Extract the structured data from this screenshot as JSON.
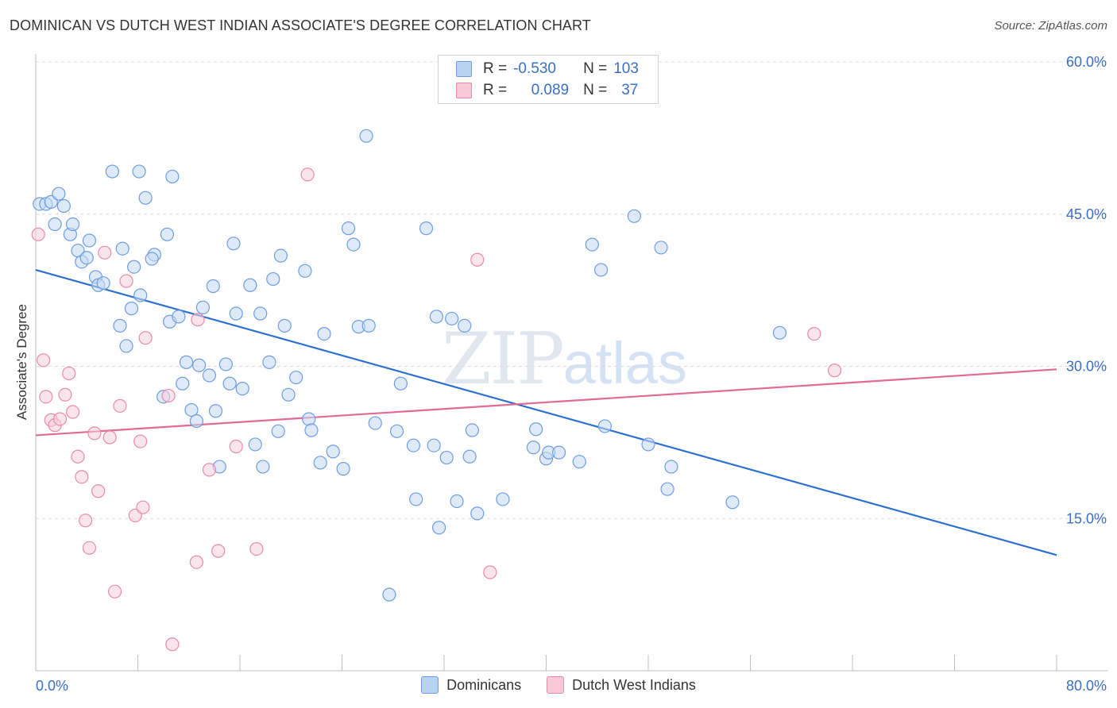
{
  "title": "DOMINICAN VS DUTCH WEST INDIAN ASSOCIATE'S DEGREE CORRELATION CHART",
  "source": "Source: ZipAtlas.com",
  "watermark": {
    "zip": "ZIP",
    "atlas": "atlas"
  },
  "legend": {
    "rows": [
      {
        "r_label": "R =",
        "r_value": "-0.530",
        "n_label": "N =",
        "n_value": "103",
        "color": "#a9c8f0",
        "border": "#6d9de0"
      },
      {
        "r_label": "R =",
        "r_value": "0.089",
        "n_label": "N =",
        "n_value": "37",
        "color": "#f7c0d0",
        "border": "#e98aa8"
      }
    ]
  },
  "bottom_legend": [
    {
      "label": "Dominicans",
      "color": "#b8d3f2",
      "border": "#6d9de0"
    },
    {
      "label": "Dutch West Indians",
      "color": "#f8cad8",
      "border": "#e98aa8"
    }
  ],
  "chart_data": {
    "type": "scatter",
    "title": "DOMINICAN VS DUTCH WEST INDIAN ASSOCIATE'S DEGREE CORRELATION CHART",
    "xlabel": "",
    "ylabel": "Associate's Degree",
    "xlim": [
      0,
      80
    ],
    "ylim": [
      0,
      60
    ],
    "x_ticks": [
      0,
      8,
      16,
      24,
      32,
      40,
      48,
      56,
      64,
      72,
      80
    ],
    "x_tick_labels": {
      "first": "0.0%",
      "last": "80.0%"
    },
    "y_ticks": [
      15,
      30,
      45,
      60
    ],
    "y_tick_labels": [
      "15.0%",
      "30.0%",
      "45.0%",
      "60.0%"
    ],
    "grid": true,
    "legend_position": "top-center",
    "series": [
      {
        "name": "Dominicans",
        "color": "#6d9de0",
        "fill": "#c4d9f4",
        "trend": {
          "x": [
            0,
            80
          ],
          "y": [
            39.5,
            11.4
          ],
          "color": "#2b6fd0"
        },
        "points": [
          [
            0.3,
            46
          ],
          [
            0.8,
            46
          ],
          [
            1.2,
            46.2
          ],
          [
            1.8,
            47
          ],
          [
            2.2,
            45.8
          ],
          [
            1.5,
            44
          ],
          [
            2.7,
            43
          ],
          [
            2.9,
            44
          ],
          [
            3.3,
            41.4
          ],
          [
            4.2,
            42.4
          ],
          [
            3.6,
            40.3
          ],
          [
            4.0,
            40.7
          ],
          [
            4.7,
            38.8
          ],
          [
            4.9,
            38
          ],
          [
            5.3,
            38.2
          ],
          [
            6.0,
            49.2
          ],
          [
            6.6,
            34
          ],
          [
            6.8,
            41.6
          ],
          [
            7.1,
            32
          ],
          [
            7.5,
            35.7
          ],
          [
            7.7,
            39.8
          ],
          [
            8.2,
            37
          ],
          [
            8.1,
            49.2
          ],
          [
            8.6,
            46.6
          ],
          [
            9.3,
            41
          ],
          [
            9.1,
            40.6
          ],
          [
            10.0,
            27
          ],
          [
            10.3,
            43
          ],
          [
            10.5,
            34.4
          ],
          [
            10.7,
            48.7
          ],
          [
            11.2,
            34.9
          ],
          [
            11.5,
            28.3
          ],
          [
            11.8,
            30.4
          ],
          [
            12.2,
            25.7
          ],
          [
            12.6,
            24.6
          ],
          [
            12.8,
            30.1
          ],
          [
            13.1,
            35.8
          ],
          [
            13.6,
            29.1
          ],
          [
            13.9,
            37.9
          ],
          [
            14.1,
            25.6
          ],
          [
            14.4,
            20.1
          ],
          [
            14.9,
            30.2
          ],
          [
            15.2,
            28.3
          ],
          [
            15.5,
            42.1
          ],
          [
            15.7,
            35.2
          ],
          [
            16.2,
            27.8
          ],
          [
            16.8,
            38
          ],
          [
            17.2,
            22.3
          ],
          [
            17.6,
            35.2
          ],
          [
            17.8,
            20.1
          ],
          [
            18.3,
            30.4
          ],
          [
            18.6,
            38.6
          ],
          [
            19.0,
            23.6
          ],
          [
            19.2,
            40.9
          ],
          [
            19.5,
            34
          ],
          [
            19.8,
            27.2
          ],
          [
            20.4,
            28.9
          ],
          [
            21.1,
            39.4
          ],
          [
            21.4,
            24.8
          ],
          [
            21.6,
            23.7
          ],
          [
            22.3,
            20.5
          ],
          [
            22.6,
            33.2
          ],
          [
            23.3,
            21.6
          ],
          [
            24.1,
            19.9
          ],
          [
            24.9,
            42
          ],
          [
            25.3,
            33.9
          ],
          [
            25.9,
            52.7
          ],
          [
            26.6,
            24.4
          ],
          [
            27.7,
            7.5
          ],
          [
            28.3,
            23.6
          ],
          [
            28.6,
            28.3
          ],
          [
            29.6,
            22.2
          ],
          [
            29.8,
            16.9
          ],
          [
            30.6,
            43.6
          ],
          [
            31.2,
            22.2
          ],
          [
            31.4,
            34.9
          ],
          [
            31.6,
            14.1
          ],
          [
            32.2,
            21
          ],
          [
            32.6,
            34.7
          ],
          [
            33.0,
            16.7
          ],
          [
            33.6,
            34
          ],
          [
            34.0,
            21.1
          ],
          [
            34.2,
            23.7
          ],
          [
            34.6,
            15.5
          ],
          [
            36.6,
            16.9
          ],
          [
            39.0,
            22
          ],
          [
            39.2,
            23.8
          ],
          [
            40.0,
            20.9
          ],
          [
            40.2,
            21.5
          ],
          [
            41.0,
            21.5
          ],
          [
            42.6,
            20.6
          ],
          [
            43.6,
            42
          ],
          [
            44.3,
            39.5
          ],
          [
            44.6,
            24.1
          ],
          [
            46.9,
            44.8
          ],
          [
            48.0,
            22.3
          ],
          [
            49.0,
            41.7
          ],
          [
            49.5,
            17.9
          ],
          [
            49.8,
            20.1
          ],
          [
            54.6,
            16.6
          ],
          [
            58.3,
            33.3
          ],
          [
            26.1,
            34.0
          ],
          [
            24.5,
            43.6
          ]
        ]
      },
      {
        "name": "Dutch West Indians",
        "color": "#e98aa8",
        "fill": "#f8cfdc",
        "trend": {
          "x": [
            0,
            80
          ],
          "y": [
            23.2,
            29.7
          ],
          "color": "#e06b93"
        },
        "points": [
          [
            0.2,
            43
          ],
          [
            0.6,
            30.6
          ],
          [
            0.8,
            27
          ],
          [
            1.2,
            24.7
          ],
          [
            1.5,
            24.2
          ],
          [
            1.9,
            24.8
          ],
          [
            2.3,
            27.2
          ],
          [
            2.6,
            29.3
          ],
          [
            2.9,
            25.5
          ],
          [
            3.3,
            21.1
          ],
          [
            3.6,
            19.1
          ],
          [
            3.9,
            14.8
          ],
          [
            4.2,
            12.1
          ],
          [
            4.6,
            23.4
          ],
          [
            4.9,
            17.7
          ],
          [
            5.4,
            41.2
          ],
          [
            5.8,
            23
          ],
          [
            6.2,
            7.8
          ],
          [
            6.6,
            26.1
          ],
          [
            7.1,
            38.4
          ],
          [
            7.8,
            15.3
          ],
          [
            8.2,
            22.6
          ],
          [
            8.4,
            16.1
          ],
          [
            8.6,
            32.8
          ],
          [
            10.4,
            27.1
          ],
          [
            10.7,
            2.6
          ],
          [
            12.6,
            10.7
          ],
          [
            12.7,
            34.6
          ],
          [
            13.6,
            19.8
          ],
          [
            14.3,
            11.8
          ],
          [
            15.7,
            22.1
          ],
          [
            17.3,
            12.0
          ],
          [
            21.3,
            48.9
          ],
          [
            34.6,
            40.5
          ],
          [
            35.6,
            9.7
          ],
          [
            61.0,
            33.2
          ],
          [
            62.6,
            29.6
          ]
        ]
      }
    ]
  }
}
